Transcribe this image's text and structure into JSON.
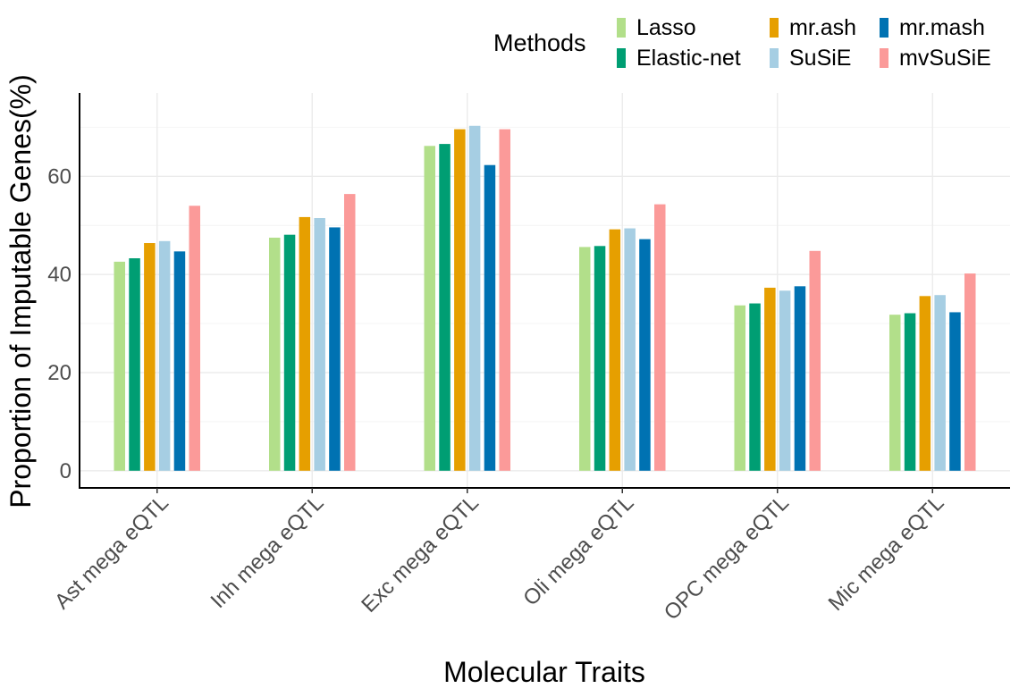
{
  "chart_data": {
    "type": "bar",
    "xlabel": "Molecular Traits",
    "ylabel": "Proportion of Imputable Genes(%)",
    "ylim": [
      -3.5,
      77
    ],
    "yticks": [
      0,
      20,
      40,
      60
    ],
    "grid": true,
    "categories": [
      "Ast mega eQTL",
      "Inh mega eQTL",
      "Exc mega eQTL",
      "Oli mega eQTL",
      "OPC mega eQTL",
      "Mic mega eQTL"
    ],
    "legend": {
      "title": "Methods",
      "position": "top-right"
    },
    "series": [
      {
        "name": "Lasso",
        "color": "#b2df8a",
        "values": [
          42.6,
          47.5,
          66.2,
          45.6,
          33.7,
          31.8
        ]
      },
      {
        "name": "Elastic-net",
        "color": "#009e73",
        "values": [
          43.3,
          48.1,
          66.6,
          45.8,
          34.1,
          32.1
        ]
      },
      {
        "name": "mr.ash",
        "color": "#e69f00",
        "values": [
          46.4,
          51.7,
          69.6,
          49.2,
          37.3,
          35.6
        ]
      },
      {
        "name": "SuSiE",
        "color": "#a6cee3",
        "values": [
          46.8,
          51.5,
          70.3,
          49.4,
          36.7,
          35.8
        ]
      },
      {
        "name": "mr.mash",
        "color": "#0072b2",
        "values": [
          44.7,
          49.6,
          62.3,
          47.2,
          37.6,
          32.3
        ]
      },
      {
        "name": "mvSuSiE",
        "color": "#fb9a99",
        "values": [
          54.0,
          56.4,
          69.6,
          54.3,
          44.8,
          40.2
        ]
      }
    ]
  }
}
